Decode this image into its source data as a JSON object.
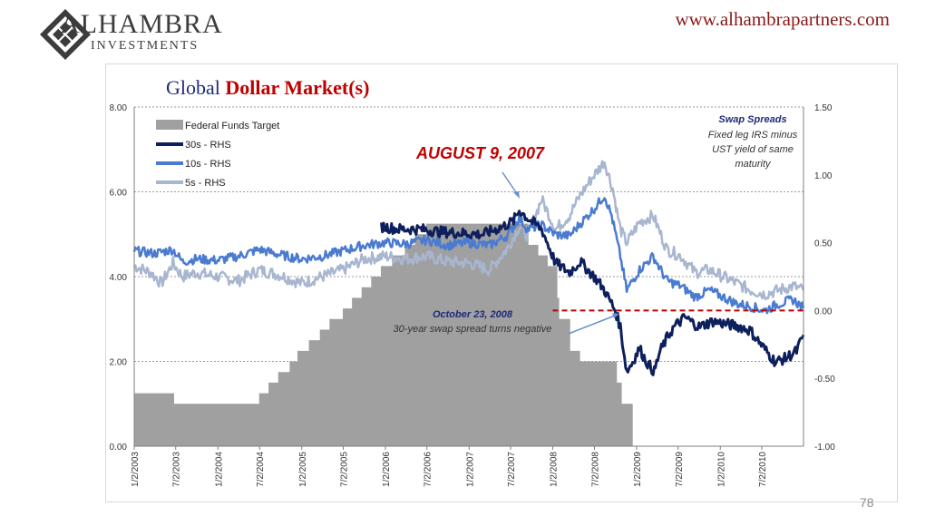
{
  "header": {
    "logo_name": "ALHAMBRA",
    "logo_sub": "INVESTMENTS",
    "url": "www.alhambrapartners.com",
    "slide_number": "78"
  },
  "chart_data": {
    "type": "line",
    "title_part1": "Global ",
    "title_part2": "Dollar Market(s)",
    "left_axis": {
      "min": 0,
      "max": 8,
      "ticks": [
        "0.00",
        "2.00",
        "4.00",
        "6.00",
        "8.00"
      ]
    },
    "right_axis": {
      "min": -1.0,
      "max": 1.5,
      "ticks": [
        "-1.00",
        "-0.50",
        "0.00",
        "0.50",
        "1.00",
        "1.50"
      ]
    },
    "x_range": [
      "2003-01-02",
      "2010-12-31"
    ],
    "x_tick_labels": [
      "1/2/2003",
      "7/2/2003",
      "1/2/2004",
      "7/2/2004",
      "1/2/2005",
      "7/2/2005",
      "1/2/2006",
      "7/2/2006",
      "1/2/2007",
      "7/2/2007",
      "1/2/2008",
      "7/2/2008",
      "1/2/2009",
      "7/2/2009",
      "1/2/2010",
      "7/2/2010"
    ],
    "grid": "horizontal dotted",
    "legend": [
      {
        "label": "Federal Funds Target",
        "color": "#a0a0a0"
      },
      {
        "label": "30s - RHS",
        "color": "#0d1f5c"
      },
      {
        "label": "10s - RHS",
        "color": "#4a7bd0"
      },
      {
        "label": "5s - RHS",
        "color": "#a8b6d0"
      }
    ],
    "fed_funds": [
      [
        "2003-01-02",
        1.25
      ],
      [
        "2003-06-25",
        1.0
      ],
      [
        "2004-06-30",
        1.25
      ],
      [
        "2004-08-10",
        1.5
      ],
      [
        "2004-09-21",
        1.75
      ],
      [
        "2004-11-10",
        2.0
      ],
      [
        "2004-12-14",
        2.25
      ],
      [
        "2005-02-02",
        2.5
      ],
      [
        "2005-03-22",
        2.75
      ],
      [
        "2005-05-03",
        3.0
      ],
      [
        "2005-06-30",
        3.25
      ],
      [
        "2005-08-09",
        3.5
      ],
      [
        "2005-09-20",
        3.75
      ],
      [
        "2005-11-01",
        4.0
      ],
      [
        "2005-12-13",
        4.25
      ],
      [
        "2006-01-31",
        4.5
      ],
      [
        "2006-03-28",
        4.75
      ],
      [
        "2006-05-10",
        5.0
      ],
      [
        "2006-06-29",
        5.25
      ],
      [
        "2007-09-18",
        4.75
      ],
      [
        "2007-10-31",
        4.5
      ],
      [
        "2007-12-11",
        4.25
      ],
      [
        "2008-01-22",
        3.5
      ],
      [
        "2008-01-30",
        3.0
      ],
      [
        "2008-03-18",
        2.25
      ],
      [
        "2008-04-30",
        2.0
      ],
      [
        "2008-10-08",
        1.5
      ],
      [
        "2008-10-29",
        1.0
      ],
      [
        "2008-12-16",
        0.0
      ]
    ],
    "series": [
      {
        "name": "30s - RHS",
        "color": "#0d1f5c",
        "points": [
          [
            "2005-12-15",
            0.62
          ],
          [
            "2006-03-01",
            0.6
          ],
          [
            "2006-06-01",
            0.6
          ],
          [
            "2006-09-01",
            0.58
          ],
          [
            "2006-12-01",
            0.57
          ],
          [
            "2007-03-01",
            0.56
          ],
          [
            "2007-06-01",
            0.62
          ],
          [
            "2007-07-15",
            0.66
          ],
          [
            "2007-08-09",
            0.74
          ],
          [
            "2007-09-15",
            0.68
          ],
          [
            "2007-11-15",
            0.6
          ],
          [
            "2008-01-15",
            0.35
          ],
          [
            "2008-03-15",
            0.28
          ],
          [
            "2008-05-01",
            0.36
          ],
          [
            "2008-07-01",
            0.25
          ],
          [
            "2008-08-15",
            0.15
          ],
          [
            "2008-10-01",
            0.0
          ],
          [
            "2008-10-23",
            -0.12
          ],
          [
            "2008-11-20",
            -0.45
          ],
          [
            "2008-12-15",
            -0.38
          ],
          [
            "2009-01-15",
            -0.28
          ],
          [
            "2009-02-15",
            -0.38
          ],
          [
            "2009-03-20",
            -0.45
          ],
          [
            "2009-04-15",
            -0.3
          ],
          [
            "2009-05-15",
            -0.2
          ],
          [
            "2009-06-15",
            -0.12
          ],
          [
            "2009-08-01",
            -0.05
          ],
          [
            "2009-10-01",
            -0.12
          ],
          [
            "2009-12-01",
            -0.08
          ],
          [
            "2010-02-01",
            -0.1
          ],
          [
            "2010-04-01",
            -0.12
          ],
          [
            "2010-05-15",
            -0.15
          ],
          [
            "2010-06-15",
            -0.22
          ],
          [
            "2010-08-01",
            -0.32
          ],
          [
            "2010-09-01",
            -0.38
          ],
          [
            "2010-10-15",
            -0.35
          ],
          [
            "2010-12-01",
            -0.3
          ],
          [
            "2010-12-31",
            -0.18
          ]
        ]
      },
      {
        "name": "10s - RHS",
        "color": "#4a7bd0",
        "points": [
          [
            "2003-01-02",
            0.44
          ],
          [
            "2003-04-01",
            0.42
          ],
          [
            "2003-06-20",
            0.45
          ],
          [
            "2003-08-01",
            0.36
          ],
          [
            "2003-10-01",
            0.38
          ],
          [
            "2004-01-01",
            0.37
          ],
          [
            "2004-04-01",
            0.4
          ],
          [
            "2004-07-01",
            0.45
          ],
          [
            "2004-10-01",
            0.41
          ],
          [
            "2005-01-01",
            0.38
          ],
          [
            "2005-04-01",
            0.4
          ],
          [
            "2005-07-01",
            0.44
          ],
          [
            "2005-10-01",
            0.48
          ],
          [
            "2006-01-01",
            0.5
          ],
          [
            "2006-04-01",
            0.49
          ],
          [
            "2006-07-01",
            0.52
          ],
          [
            "2006-10-01",
            0.48
          ],
          [
            "2007-01-01",
            0.5
          ],
          [
            "2007-04-01",
            0.48
          ],
          [
            "2007-06-15",
            0.55
          ],
          [
            "2007-08-09",
            0.68
          ],
          [
            "2007-09-15",
            0.6
          ],
          [
            "2007-11-15",
            0.63
          ],
          [
            "2008-01-15",
            0.56
          ],
          [
            "2008-03-15",
            0.55
          ],
          [
            "2008-05-01",
            0.64
          ],
          [
            "2008-07-01",
            0.75
          ],
          [
            "2008-08-15",
            0.85
          ],
          [
            "2008-09-15",
            0.7
          ],
          [
            "2008-10-23",
            0.4
          ],
          [
            "2008-11-20",
            0.15
          ],
          [
            "2009-01-15",
            0.3
          ],
          [
            "2009-03-15",
            0.4
          ],
          [
            "2009-05-15",
            0.22
          ],
          [
            "2009-07-15",
            0.18
          ],
          [
            "2009-09-15",
            0.1
          ],
          [
            "2009-11-15",
            0.15
          ],
          [
            "2010-01-15",
            0.1
          ],
          [
            "2010-03-15",
            0.05
          ],
          [
            "2010-05-15",
            0.03
          ],
          [
            "2010-07-15",
            0.0
          ],
          [
            "2010-09-15",
            0.05
          ],
          [
            "2010-11-15",
            0.08
          ],
          [
            "2010-12-31",
            0.02
          ]
        ]
      },
      {
        "name": "5s - RHS",
        "color": "#a8b6d0",
        "points": [
          [
            "2003-01-02",
            0.33
          ],
          [
            "2003-03-15",
            0.28
          ],
          [
            "2003-05-01",
            0.2
          ],
          [
            "2003-06-20",
            0.35
          ],
          [
            "2003-08-01",
            0.25
          ],
          [
            "2003-10-01",
            0.28
          ],
          [
            "2004-01-01",
            0.25
          ],
          [
            "2004-04-01",
            0.22
          ],
          [
            "2004-07-01",
            0.3
          ],
          [
            "2004-10-01",
            0.26
          ],
          [
            "2005-01-01",
            0.2
          ],
          [
            "2005-04-01",
            0.25
          ],
          [
            "2005-07-01",
            0.3
          ],
          [
            "2005-10-01",
            0.38
          ],
          [
            "2006-01-01",
            0.4
          ],
          [
            "2006-04-01",
            0.38
          ],
          [
            "2006-07-01",
            0.4
          ],
          [
            "2006-10-01",
            0.36
          ],
          [
            "2007-01-01",
            0.35
          ],
          [
            "2007-04-01",
            0.3
          ],
          [
            "2007-06-15",
            0.45
          ],
          [
            "2007-08-09",
            0.62
          ],
          [
            "2007-09-15",
            0.55
          ],
          [
            "2007-11-15",
            0.82
          ],
          [
            "2008-01-15",
            0.6
          ],
          [
            "2008-03-15",
            0.7
          ],
          [
            "2008-05-01",
            0.85
          ],
          [
            "2008-07-01",
            1.0
          ],
          [
            "2008-08-15",
            1.1
          ],
          [
            "2008-09-20",
            0.9
          ],
          [
            "2008-10-23",
            0.6
          ],
          [
            "2008-11-20",
            0.5
          ],
          [
            "2009-01-15",
            0.65
          ],
          [
            "2009-03-15",
            0.7
          ],
          [
            "2009-05-15",
            0.45
          ],
          [
            "2009-07-15",
            0.4
          ],
          [
            "2009-09-15",
            0.28
          ],
          [
            "2009-11-15",
            0.3
          ],
          [
            "2010-01-15",
            0.25
          ],
          [
            "2010-03-15",
            0.2
          ],
          [
            "2010-05-15",
            0.15
          ],
          [
            "2010-07-15",
            0.12
          ],
          [
            "2010-09-15",
            0.15
          ],
          [
            "2010-11-15",
            0.18
          ],
          [
            "2010-12-31",
            0.15
          ]
        ]
      }
    ],
    "zero_line": {
      "from": "2008-01-02",
      "to": "2010-12-31",
      "value_rhs": 0.0,
      "color": "#c00000"
    },
    "annotations": [
      {
        "id": "aug",
        "text": "AUGUST 9, 2007",
        "color": "#c00000"
      },
      {
        "id": "oct_date",
        "text": "October 23, 2008",
        "color": "#1f2a7a"
      },
      {
        "id": "oct_desc",
        "text": "30-year swap spread turns negative",
        "color": "#333333"
      },
      {
        "id": "swap_title",
        "text": "Swap Spreads",
        "color": "#1f2a7a"
      },
      {
        "id": "swap_l1",
        "text": "Fixed leg IRS minus",
        "color": "#333333"
      },
      {
        "id": "swap_l2",
        "text": "UST yield of same",
        "color": "#333333"
      },
      {
        "id": "swap_l3",
        "text": "maturity",
        "color": "#333333"
      }
    ]
  }
}
